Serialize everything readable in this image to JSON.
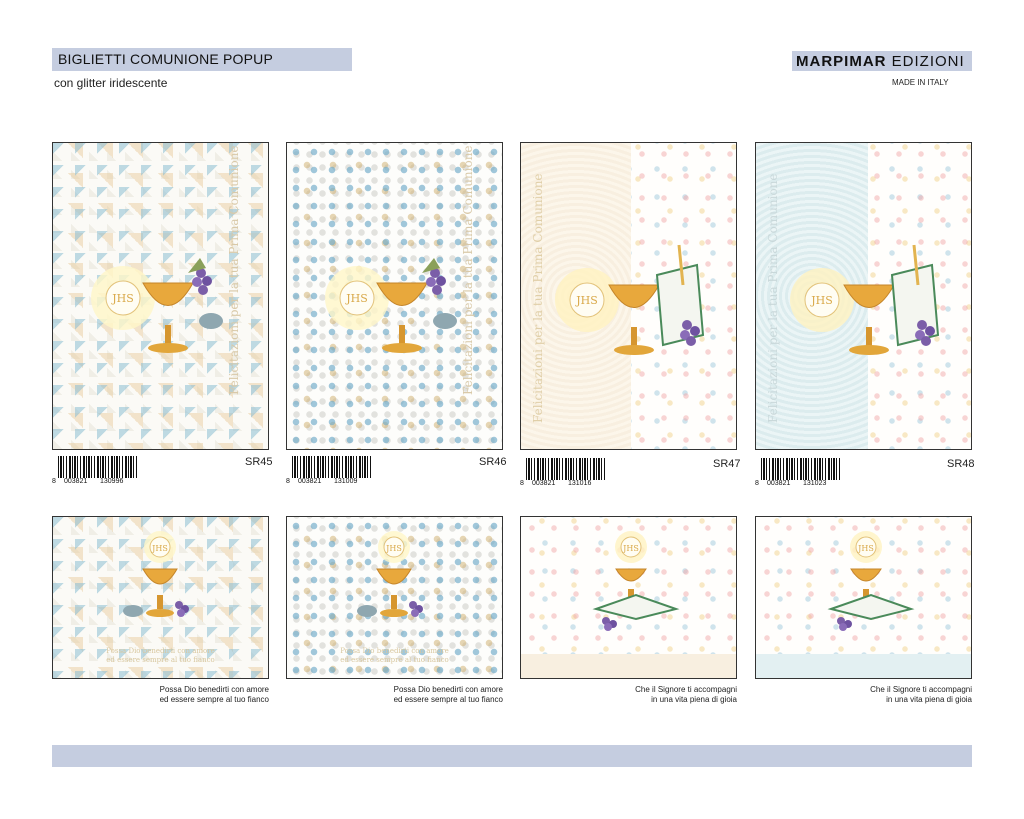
{
  "header": {
    "title": "BIGLIETTI COMUNIONE POPUP",
    "subtitle": "con glitter iridescente",
    "brand_bold": "MARPIMAR",
    "brand_light": "EDIZIONI",
    "made_in": "MADE IN ITALY"
  },
  "products": [
    {
      "sku": "SR45",
      "barcode": [
        "8",
        "003821",
        "130996"
      ],
      "cover_text": "Felicitazioni per la tua Prima Comunione",
      "inside_text": [
        "Possa Dio benedirti con amore",
        "ed essere sempre al tuo fianco"
      ],
      "caption": [
        "Possa Dio benedirti con amore",
        "ed essere sempre al tuo fianco"
      ],
      "pattern": "diamond",
      "monogram": "JHS"
    },
    {
      "sku": "SR46",
      "barcode": [
        "8",
        "003821",
        "131009"
      ],
      "cover_text": "Felicitazioni per la tua Prima Comunione",
      "inside_text": [
        "Possa Dio benedirti con amore",
        "ed essere sempre al tuo fianco"
      ],
      "caption": [
        "Possa Dio benedirti con amore",
        "ed essere sempre al tuo fianco"
      ],
      "pattern": "squares",
      "monogram": "JHS"
    },
    {
      "sku": "SR47",
      "barcode": [
        "8",
        "003821",
        "131016"
      ],
      "cover_text": "Felicitazioni per la tua Prima Comunione",
      "caption": [
        "Che il Signore ti accompagni",
        "in una vita piena di gioia"
      ],
      "pattern": "hearts-cream",
      "monogram": "JHS"
    },
    {
      "sku": "SR48",
      "barcode": [
        "8",
        "003821",
        "131023"
      ],
      "cover_text": "Felicitazioni per la tua Prima Comunione",
      "caption": [
        "Che il Signore ti accompagni",
        "in una vita piena di gioia"
      ],
      "pattern": "hearts-blue",
      "monogram": "JHS"
    }
  ],
  "colors": {
    "accent_bar": "#c5cde0",
    "gold": "#e2a63a",
    "grape": "#7b5ea8",
    "leaf": "#8aa05a",
    "script_text": "#d9c9a8"
  }
}
